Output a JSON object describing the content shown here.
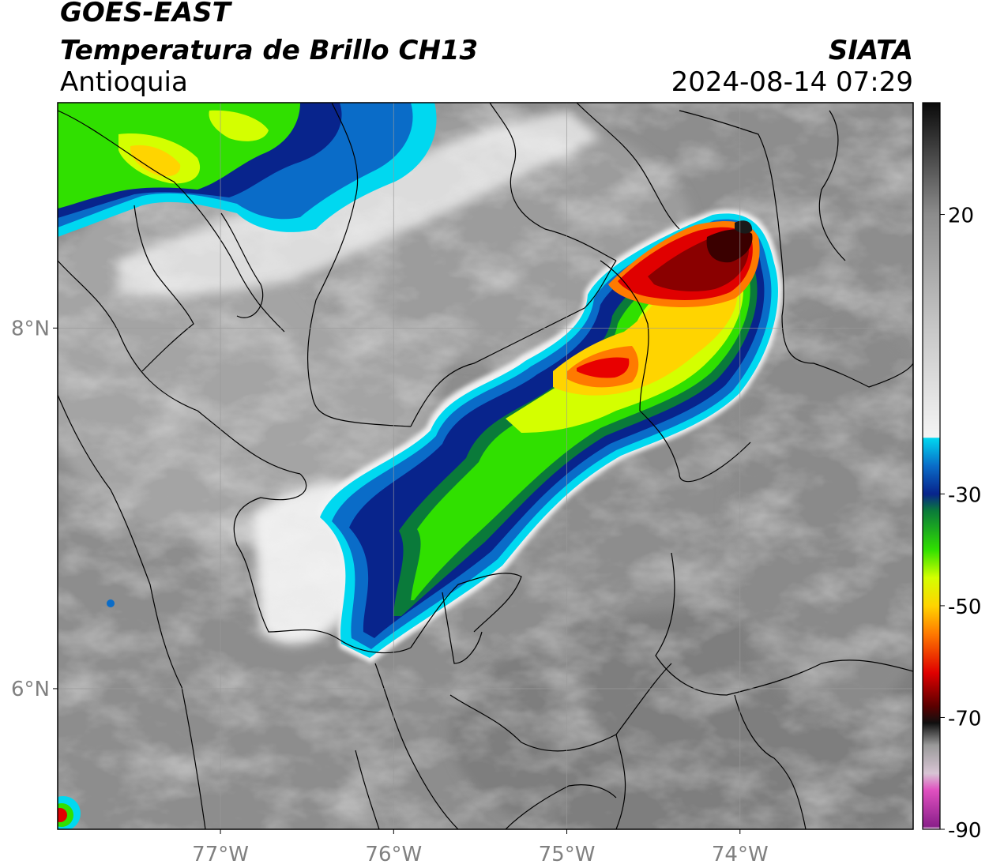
{
  "header": {
    "satellite": "GOES-EAST",
    "product": "Temperatura de Brillo CH13",
    "region": "Antioquia",
    "source": "SIATA",
    "timestamp": "2024-08-14 07:29"
  },
  "axes": {
    "lon_ticks": [
      {
        "lon": -77,
        "label": "77°W"
      },
      {
        "lon": -76,
        "label": "76°W"
      },
      {
        "lon": -75,
        "label": "75°W"
      },
      {
        "lon": -74,
        "label": "74°W"
      }
    ],
    "lat_ticks": [
      {
        "lat": 8,
        "label": "8°N"
      },
      {
        "lat": 6,
        "label": "6°N"
      }
    ],
    "lon_range": [
      -77.94,
      -73.0
    ],
    "lat_range": [
      5.22,
      9.25
    ],
    "grid": true
  },
  "colorbar": {
    "range": [
      -90,
      40
    ],
    "ticks": [
      {
        "value": 20,
        "label": "20"
      },
      {
        "value": -30,
        "label": "-30"
      },
      {
        "value": -50,
        "label": "-50"
      },
      {
        "value": -70,
        "label": "-70"
      },
      {
        "value": -90,
        "label": "-90"
      }
    ],
    "stops": [
      {
        "value": -90,
        "color": "#ffffff"
      },
      {
        "value": -89.5,
        "color": "#8a1f8a"
      },
      {
        "value": -83,
        "color": "#e050c0"
      },
      {
        "value": -80,
        "color": "#d8c4d4"
      },
      {
        "value": -75,
        "color": "#9a9a9a"
      },
      {
        "value": -71,
        "color": "#101010"
      },
      {
        "value": -68,
        "color": "#5a0000"
      },
      {
        "value": -62,
        "color": "#e00000"
      },
      {
        "value": -55,
        "color": "#ff7a00"
      },
      {
        "value": -50,
        "color": "#ffd400"
      },
      {
        "value": -45,
        "color": "#d4ff00"
      },
      {
        "value": -40,
        "color": "#30e000"
      },
      {
        "value": -33,
        "color": "#0a7a3a"
      },
      {
        "value": -30,
        "color": "#08248c"
      },
      {
        "value": -25,
        "color": "#0a6cc8"
      },
      {
        "value": -20,
        "color": "#00d8f0"
      },
      {
        "value": -19.9,
        "color": "#f4f4f4"
      },
      {
        "value": 0,
        "color": "#c6c6c6"
      },
      {
        "value": 20,
        "color": "#8c8c8c"
      },
      {
        "value": 40,
        "color": "#0a0a0a"
      }
    ]
  }
}
